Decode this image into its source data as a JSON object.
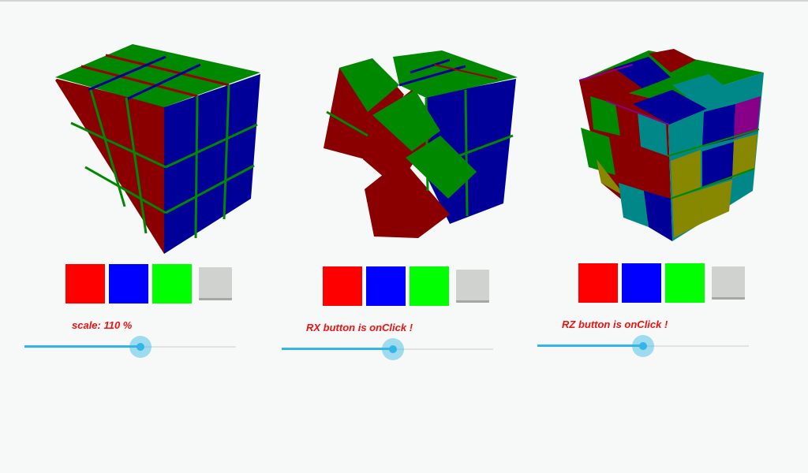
{
  "colors": {
    "accent": "#33b5e5",
    "status_text": "#ee1111",
    "cube_red": "#880000",
    "cube_green": "#008800",
    "cube_blue": "#000099",
    "btn_red": "#ff0000",
    "btn_blue": "#0000ff",
    "btn_green": "#00ff00",
    "btn_gray": "#cfd2cf"
  },
  "panels": [
    {
      "status": "scale: 110 %",
      "slider_value": 0.55,
      "buttons": [
        "red",
        "blue",
        "green",
        "gray"
      ]
    },
    {
      "status": "RX button is onClick !",
      "slider_value": 0.53,
      "buttons": [
        "red",
        "blue",
        "green",
        "gray"
      ]
    },
    {
      "status": "RZ button is onClick !",
      "slider_value": 0.5,
      "buttons": [
        "red",
        "blue",
        "green",
        "gray"
      ]
    }
  ]
}
